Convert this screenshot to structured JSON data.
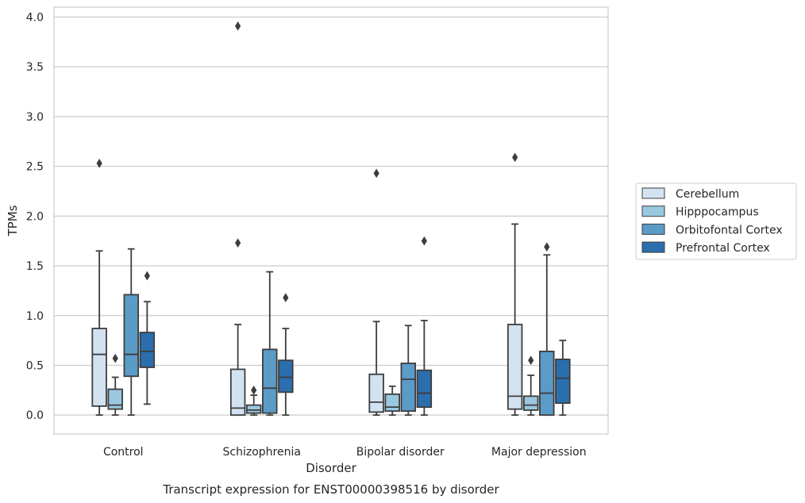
{
  "chart_data": {
    "type": "box",
    "caption": "Transcript expression for ENST00000398516 by disorder",
    "xlabel": "Disorder",
    "ylabel": "TPMs",
    "ylim": [
      -0.19,
      4.1
    ],
    "yticks": [
      "0.0",
      "0.5",
      "1.0",
      "1.5",
      "2.0",
      "2.5",
      "3.0",
      "3.5",
      "4.0"
    ],
    "grid": "horizontal",
    "legend_position": "right",
    "categories": [
      "Control",
      "Schizophrenia",
      "Bipolar disorder",
      "Major depression"
    ],
    "series": [
      {
        "name": "Cerebellum",
        "color": "#d2e2f1",
        "boxes": [
          {
            "whisker_low": 0.0,
            "q1": 0.09,
            "median": 0.61,
            "q3": 0.87,
            "whisker_high": 1.65,
            "outliers": [
              2.53
            ]
          },
          {
            "whisker_low": 0.0,
            "q1": 0.0,
            "median": 0.07,
            "q3": 0.46,
            "whisker_high": 0.91,
            "outliers": [
              1.73,
              3.91
            ]
          },
          {
            "whisker_low": 0.0,
            "q1": 0.03,
            "median": 0.13,
            "q3": 0.41,
            "whisker_high": 0.94,
            "outliers": [
              2.43
            ]
          },
          {
            "whisker_low": 0.0,
            "q1": 0.06,
            "median": 0.19,
            "q3": 0.91,
            "whisker_high": 1.92,
            "outliers": [
              2.59
            ]
          }
        ]
      },
      {
        "name": "Hipppocampus",
        "color": "#9ac8e0",
        "boxes": [
          {
            "whisker_low": 0.0,
            "q1": 0.06,
            "median": 0.1,
            "q3": 0.26,
            "whisker_high": 0.38,
            "outliers": [
              0.57
            ]
          },
          {
            "whisker_low": 0.0,
            "q1": 0.02,
            "median": 0.05,
            "q3": 0.1,
            "whisker_high": 0.2,
            "outliers": [
              0.25
            ]
          },
          {
            "whisker_low": 0.0,
            "q1": 0.04,
            "median": 0.08,
            "q3": 0.21,
            "whisker_high": 0.29,
            "outliers": []
          },
          {
            "whisker_low": 0.0,
            "q1": 0.05,
            "median": 0.1,
            "q3": 0.19,
            "whisker_high": 0.4,
            "outliers": [
              0.55
            ]
          }
        ]
      },
      {
        "name": "Orbitofontal Cortex",
        "color": "#5b9bc8",
        "boxes": [
          {
            "whisker_low": 0.0,
            "q1": 0.39,
            "median": 0.61,
            "q3": 1.21,
            "whisker_high": 1.67,
            "outliers": []
          },
          {
            "whisker_low": 0.0,
            "q1": 0.02,
            "median": 0.27,
            "q3": 0.66,
            "whisker_high": 1.44,
            "outliers": []
          },
          {
            "whisker_low": 0.0,
            "q1": 0.04,
            "median": 0.36,
            "q3": 0.52,
            "whisker_high": 0.9,
            "outliers": []
          },
          {
            "whisker_low": 0.0,
            "q1": 0.0,
            "median": 0.22,
            "q3": 0.64,
            "whisker_high": 1.61,
            "outliers": [
              1.69
            ]
          }
        ]
      },
      {
        "name": "Prefrontal Cortex",
        "color": "#2b6ead",
        "boxes": [
          {
            "whisker_low": 0.11,
            "q1": 0.48,
            "median": 0.64,
            "q3": 0.83,
            "whisker_high": 1.14,
            "outliers": [
              1.4
            ]
          },
          {
            "whisker_low": 0.0,
            "q1": 0.23,
            "median": 0.38,
            "q3": 0.55,
            "whisker_high": 0.87,
            "outliers": [
              1.18
            ]
          },
          {
            "whisker_low": 0.0,
            "q1": 0.08,
            "median": 0.22,
            "q3": 0.45,
            "whisker_high": 0.95,
            "outliers": [
              1.75
            ]
          },
          {
            "whisker_low": 0.0,
            "q1": 0.12,
            "median": 0.37,
            "q3": 0.56,
            "whisker_high": 0.75,
            "outliers": []
          }
        ]
      }
    ]
  }
}
